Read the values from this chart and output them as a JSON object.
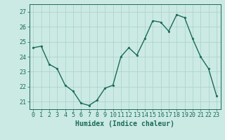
{
  "x": [
    0,
    1,
    2,
    3,
    4,
    5,
    6,
    7,
    8,
    9,
    10,
    11,
    12,
    13,
    14,
    15,
    16,
    17,
    18,
    19,
    20,
    21,
    22,
    23
  ],
  "y": [
    24.6,
    24.7,
    23.5,
    23.2,
    22.1,
    21.7,
    20.9,
    20.75,
    21.1,
    21.9,
    22.1,
    24.0,
    24.6,
    24.1,
    25.2,
    26.4,
    26.3,
    25.7,
    26.8,
    26.6,
    25.2,
    24.0,
    23.2,
    21.4
  ],
  "line_color": "#1a6b5a",
  "marker": "o",
  "markersize": 2.0,
  "linewidth": 1.0,
  "bg_color": "#cceae4",
  "grid_color": "#aed4cc",
  "xlabel": "Humidex (Indice chaleur)",
  "xlabel_fontsize": 7,
  "tick_fontsize": 6,
  "ylim": [
    20.5,
    27.5
  ],
  "yticks": [
    21,
    22,
    23,
    24,
    25,
    26,
    27
  ],
  "xticks": [
    0,
    1,
    2,
    3,
    4,
    5,
    6,
    7,
    8,
    9,
    10,
    11,
    12,
    13,
    14,
    15,
    16,
    17,
    18,
    19,
    20,
    21,
    22,
    23
  ],
  "xlim": [
    -0.5,
    23.5
  ]
}
